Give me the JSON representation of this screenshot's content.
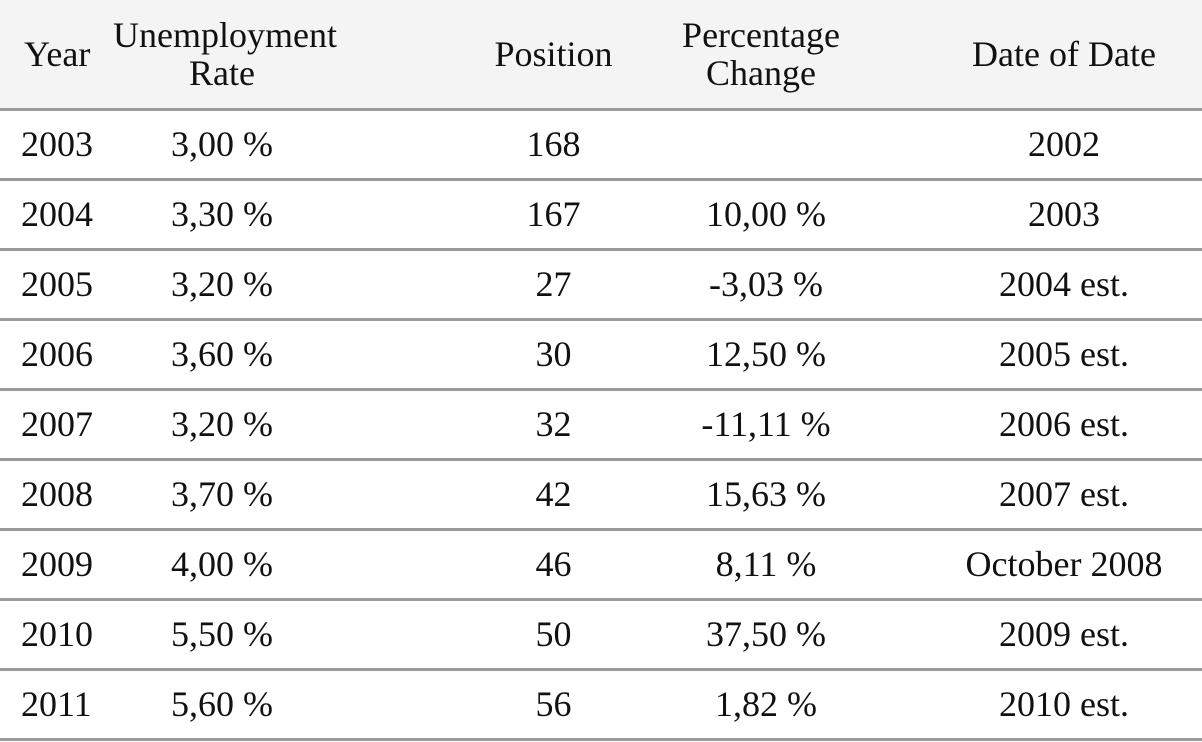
{
  "chart_data": {
    "type": "table",
    "columns": [
      [
        "Year"
      ],
      [
        "Unemployment",
        "Rate"
      ],
      [
        "Position"
      ],
      [
        "Percentage",
        "Change"
      ],
      [
        "Date of Date"
      ]
    ],
    "rows": [
      [
        "2003",
        "3,00 %",
        "168",
        "",
        "2002"
      ],
      [
        "2004",
        "3,30 %",
        "167",
        "10,00 %",
        "2003"
      ],
      [
        "2005",
        "3,20 %",
        "27",
        "-3,03 %",
        "2004 est."
      ],
      [
        "2006",
        "3,60 %",
        "30",
        "12,50 %",
        "2005 est."
      ],
      [
        "2007",
        "3,20 %",
        "32",
        "-11,11 %",
        "2006 est."
      ],
      [
        "2008",
        "3,70 %",
        "42",
        "15,63 %",
        "2007 est."
      ],
      [
        "2009",
        "4,00 %",
        "46",
        "8,11 %",
        "October 2008"
      ],
      [
        "2010",
        "5,50 %",
        "50",
        "37,50 %",
        "2009 est."
      ],
      [
        "2011",
        "5,60 %",
        "56",
        "1,82 %",
        "2010 est."
      ]
    ],
    "header_background": "#f4f4f4",
    "rule_color": "#9a9a9a",
    "text_color": "#111111"
  }
}
